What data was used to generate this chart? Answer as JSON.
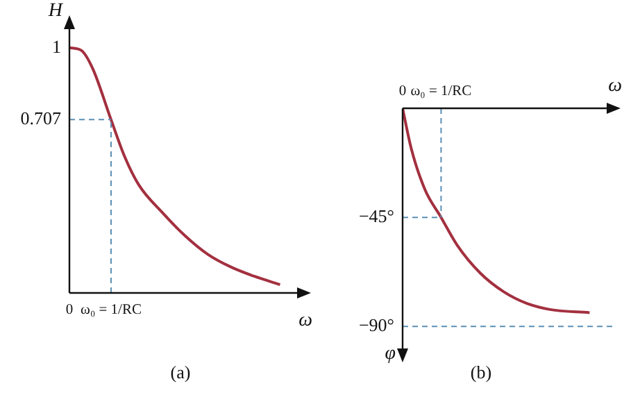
{
  "chart_data": [
    {
      "type": "line",
      "xlabel": "ω",
      "ylabel": "H",
      "color": "#a3303f",
      "marker": "none",
      "grid": false,
      "legend": false,
      "x": [
        0,
        0.28,
        0.56,
        1,
        1.33,
        1.67,
        2.22,
        2.78,
        3.33,
        3.89,
        4.44,
        5.06
      ],
      "values": [
        1,
        0.99,
        0.915,
        0.707,
        0.555,
        0.44,
        0.33,
        0.233,
        0.157,
        0.105,
        0.068,
        0.034
      ],
      "xlim": [
        0,
        5.67
      ],
      "ylim": [
        0,
        1.11
      ],
      "xticks": [
        0,
        {
          "value": 1,
          "label": "ω₀ = 1/RC"
        }
      ],
      "yticks": [
        0.707,
        1
      ],
      "ref_lines": [
        {
          "axis": "x",
          "value": 1,
          "color": "#5a8fb5",
          "line_style": "dashed"
        },
        {
          "axis": "y",
          "value": 0.707,
          "color": "#5a8fb5",
          "line_style": "dashed"
        }
      ],
      "annotations": [
        "(a)"
      ]
    },
    {
      "type": "line",
      "xlabel": "ω",
      "ylabel": "φ",
      "color": "#a3303f",
      "marker": "none",
      "grid": false,
      "legend": false,
      "x": [
        0,
        0.22,
        0.58,
        1,
        1.42,
        2.02,
        2.63,
        3.23,
        3.83,
        4.86
      ],
      "values": [
        0,
        -16.3,
        -33.5,
        -45,
        -56.5,
        -68,
        -75.7,
        -80.5,
        -83,
        -84.3
      ],
      "xlim": [
        0,
        5.52
      ],
      "ylim": [
        -102.5,
        0
      ],
      "xticks": [
        0,
        {
          "value": 1,
          "label": "ω₀ = 1/RC"
        }
      ],
      "yticks": [
        {
          "value": -45,
          "label": "−45°"
        },
        {
          "value": -90,
          "label": "−90°"
        }
      ],
      "ref_lines": [
        {
          "axis": "x",
          "value": 1,
          "color": "#5a8fb5",
          "line_style": "dashed"
        },
        {
          "axis": "y",
          "value": -45,
          "color": "#5a8fb5",
          "line_style": "dashed"
        },
        {
          "axis": "y",
          "value": -90,
          "color": "#5a8fb5",
          "line_style": "dashed"
        }
      ],
      "annotations": [
        "(b)"
      ]
    }
  ]
}
